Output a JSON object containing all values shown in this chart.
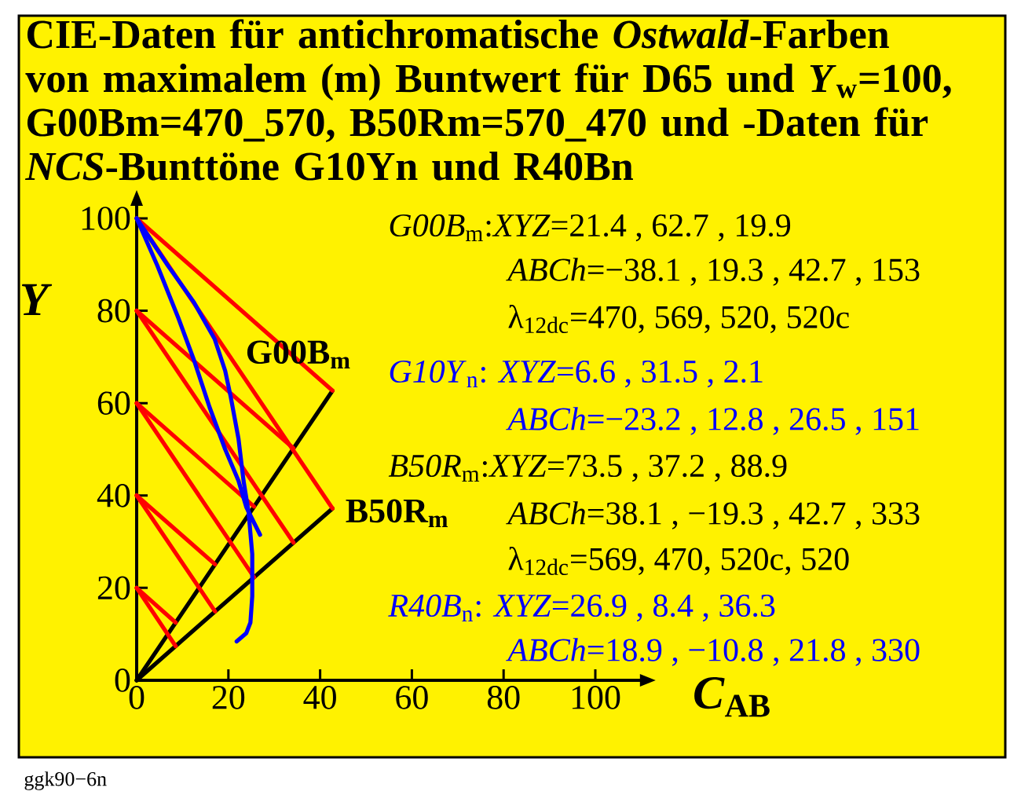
{
  "chart_data": {
    "type": "line",
    "title": "CIE-Daten für antichromatische *Ostwald*-Farben von maximalem (m) Buntwert für D65 und *Y*$_{w}$=100, G00Bm=470_570, B50Rm=570_470 und -Daten für *NCS*-Bunttöne G10Yn und R40Bn",
    "xlabel": "*C*$_{AB}$",
    "ylabel": "*Y*",
    "xlim": [
      0,
      110
    ],
    "ylim": [
      0,
      103
    ],
    "xticks": [
      0,
      20,
      40,
      60,
      80,
      100
    ],
    "yticks": [
      0,
      20,
      40,
      60,
      80,
      100
    ],
    "series": [
      {
        "color": "#000000",
        "x": [
          0,
          42.7
        ],
        "values": [
          0,
          62.7
        ]
      },
      {
        "color": "#000000",
        "x": [
          0,
          42.7
        ],
        "values": [
          0,
          37.2
        ]
      },
      {
        "color": "#ff0000",
        "x": [
          0,
          42.7
        ],
        "values": [
          100,
          62.7
        ]
      },
      {
        "color": "#ff0000",
        "x": [
          0,
          42.7
        ],
        "values": [
          100,
          37.2
        ]
      },
      {
        "color": "#ff0000",
        "x": [
          0,
          34.2
        ],
        "values": [
          80,
          50.2
        ]
      },
      {
        "color": "#ff0000",
        "x": [
          0,
          34.2
        ],
        "values": [
          80,
          29.8
        ]
      },
      {
        "color": "#ff0000",
        "x": [
          0,
          25.6
        ],
        "values": [
          60,
          37.6
        ]
      },
      {
        "color": "#ff0000",
        "x": [
          0,
          25.6
        ],
        "values": [
          60,
          22.3
        ]
      },
      {
        "color": "#ff0000",
        "x": [
          0,
          17.1
        ],
        "values": [
          40,
          25.1
        ]
      },
      {
        "color": "#ff0000",
        "x": [
          0,
          17.1
        ],
        "values": [
          40,
          14.9
        ]
      },
      {
        "color": "#ff0000",
        "x": [
          0,
          8.5
        ],
        "values": [
          20,
          12.5
        ]
      },
      {
        "color": "#ff0000",
        "x": [
          0,
          8.5
        ],
        "values": [
          20,
          7.4
        ]
      },
      {
        "color": "#0000ff",
        "x": [
          0,
          4.5,
          9.1,
          12.5,
          15.9,
          19.3,
          22.2,
          23.9,
          25.6,
          26.9
        ],
        "values": [
          100,
          89.8,
          78.4,
          69.3,
          59.1,
          50,
          43.2,
          37.5,
          34.1,
          31.5
        ]
      },
      {
        "color": "#0000ff",
        "x": [
          0,
          6.8,
          12.5,
          17,
          19.3,
          20.5,
          22.2,
          23.3,
          24.4,
          25.2,
          25.2,
          24.8,
          23.9,
          21.8
        ],
        "values": [
          100,
          89.8,
          81.8,
          73.9,
          67,
          61.4,
          52.3,
          43.2,
          36.4,
          27.3,
          18.2,
          12.5,
          10.2,
          8.4
        ]
      }
    ],
    "annotations": [
      {
        "text": "G00B$_{m}$",
        "x": 42.7,
        "y": 62.7
      },
      {
        "text": "B50R$_{m}$",
        "x": 42.7,
        "y": 37.2
      },
      "*G00B*$_{m}$:*XYZ*=21.4 , 62.7 , 19.9",
      "*ABCh*=−38.1 , 19.3 , 42.7 , 153",
      "λ$_{12dc}$=470, 569, 520, 520c",
      "*G10Y*$_{n}$: *XYZ*=6.6 , 31.5 , 2.1",
      "*ABCh*=−23.2 , 12.8 , 26.5 , 151",
      "*B50R*$_{m}$:*XYZ*=73.5 , 37.2 , 88.9",
      "*ABCh*=38.1 , −19.3 , 42.7 , 333",
      "λ$_{12dc}$=569, 470, 520c, 520",
      "*R40B*$_{n}$: *XYZ*=26.9 , 8.4 , 36.3",
      "*ABCh*=18.9 , −10.8 , 21.8 , 330",
      "ggk90−6n"
    ]
  }
}
